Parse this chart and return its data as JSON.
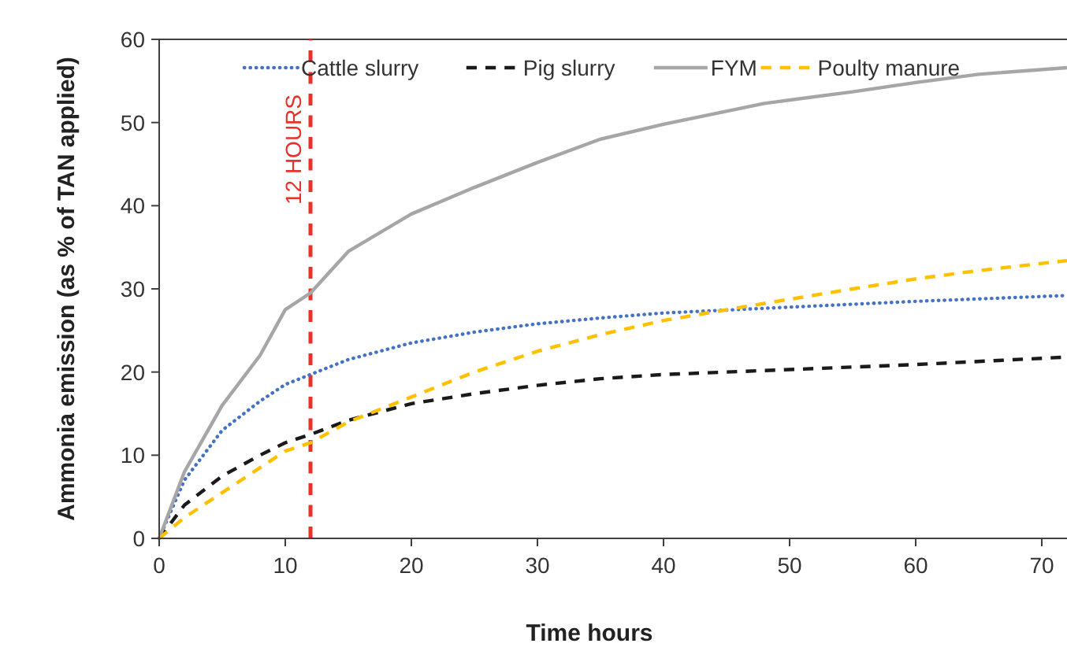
{
  "chart_data": {
    "type": "line",
    "xlabel": "Time hours",
    "ylabel": "Ammonia emission (as % of TAN applied)",
    "xlim": [
      0,
      72
    ],
    "xticks": [
      0,
      10,
      20,
      30,
      40,
      50,
      60,
      70
    ],
    "ylim": [
      0,
      60
    ],
    "yticks": [
      0,
      10,
      20,
      30,
      40,
      50,
      60
    ],
    "legend": "top",
    "grid": false,
    "marker": "none",
    "ref_lines": [
      {
        "axis": "x",
        "value": 12,
        "label": "12 HOURS",
        "color": "#e8312a",
        "line_style": "dashed"
      }
    ],
    "series": [
      {
        "name": "Cattle slurry",
        "color": "#4472c4",
        "line_style": "dotted",
        "x": [
          0,
          2,
          5,
          8,
          10,
          12,
          15,
          20,
          25,
          30,
          35,
          40,
          50,
          60,
          72
        ],
        "values": [
          0,
          7,
          13,
          16.5,
          18.5,
          19.7,
          21.5,
          23.5,
          24.8,
          25.8,
          26.5,
          27.1,
          27.8,
          28.5,
          29.2
        ]
      },
      {
        "name": "Pig slurry",
        "color": "#1a1a1a",
        "line_style": "dashed",
        "x": [
          0,
          2,
          5,
          8,
          10,
          12,
          15,
          20,
          25,
          30,
          35,
          40,
          50,
          60,
          72
        ],
        "values": [
          0,
          4,
          7.5,
          10,
          11.5,
          12.5,
          14.2,
          16.2,
          17.4,
          18.4,
          19.2,
          19.7,
          20.3,
          20.9,
          21.8
        ]
      },
      {
        "name": "FYM",
        "color": "#a6a6a6",
        "line_style": "solid",
        "x": [
          0,
          2,
          5,
          8,
          10,
          12,
          15,
          20,
          25,
          30,
          35,
          40,
          48,
          55,
          60,
          65,
          72
        ],
        "values": [
          0,
          8,
          16,
          22,
          27.5,
          29.5,
          34.5,
          39,
          42.2,
          45.2,
          48,
          49.8,
          52.3,
          53.7,
          54.8,
          55.8,
          56.6
        ]
      },
      {
        "name": "Poulty manure",
        "color": "#ffc000",
        "line_style": "dashed",
        "x": [
          0,
          2,
          5,
          8,
          10,
          12,
          15,
          20,
          25,
          30,
          35,
          40,
          47,
          55,
          60,
          65,
          72
        ],
        "values": [
          0,
          2.5,
          5.5,
          8.5,
          10.5,
          11.5,
          14,
          17,
          20,
          22.5,
          24.5,
          26.2,
          28,
          30,
          31.2,
          32.2,
          33.4
        ]
      }
    ]
  }
}
